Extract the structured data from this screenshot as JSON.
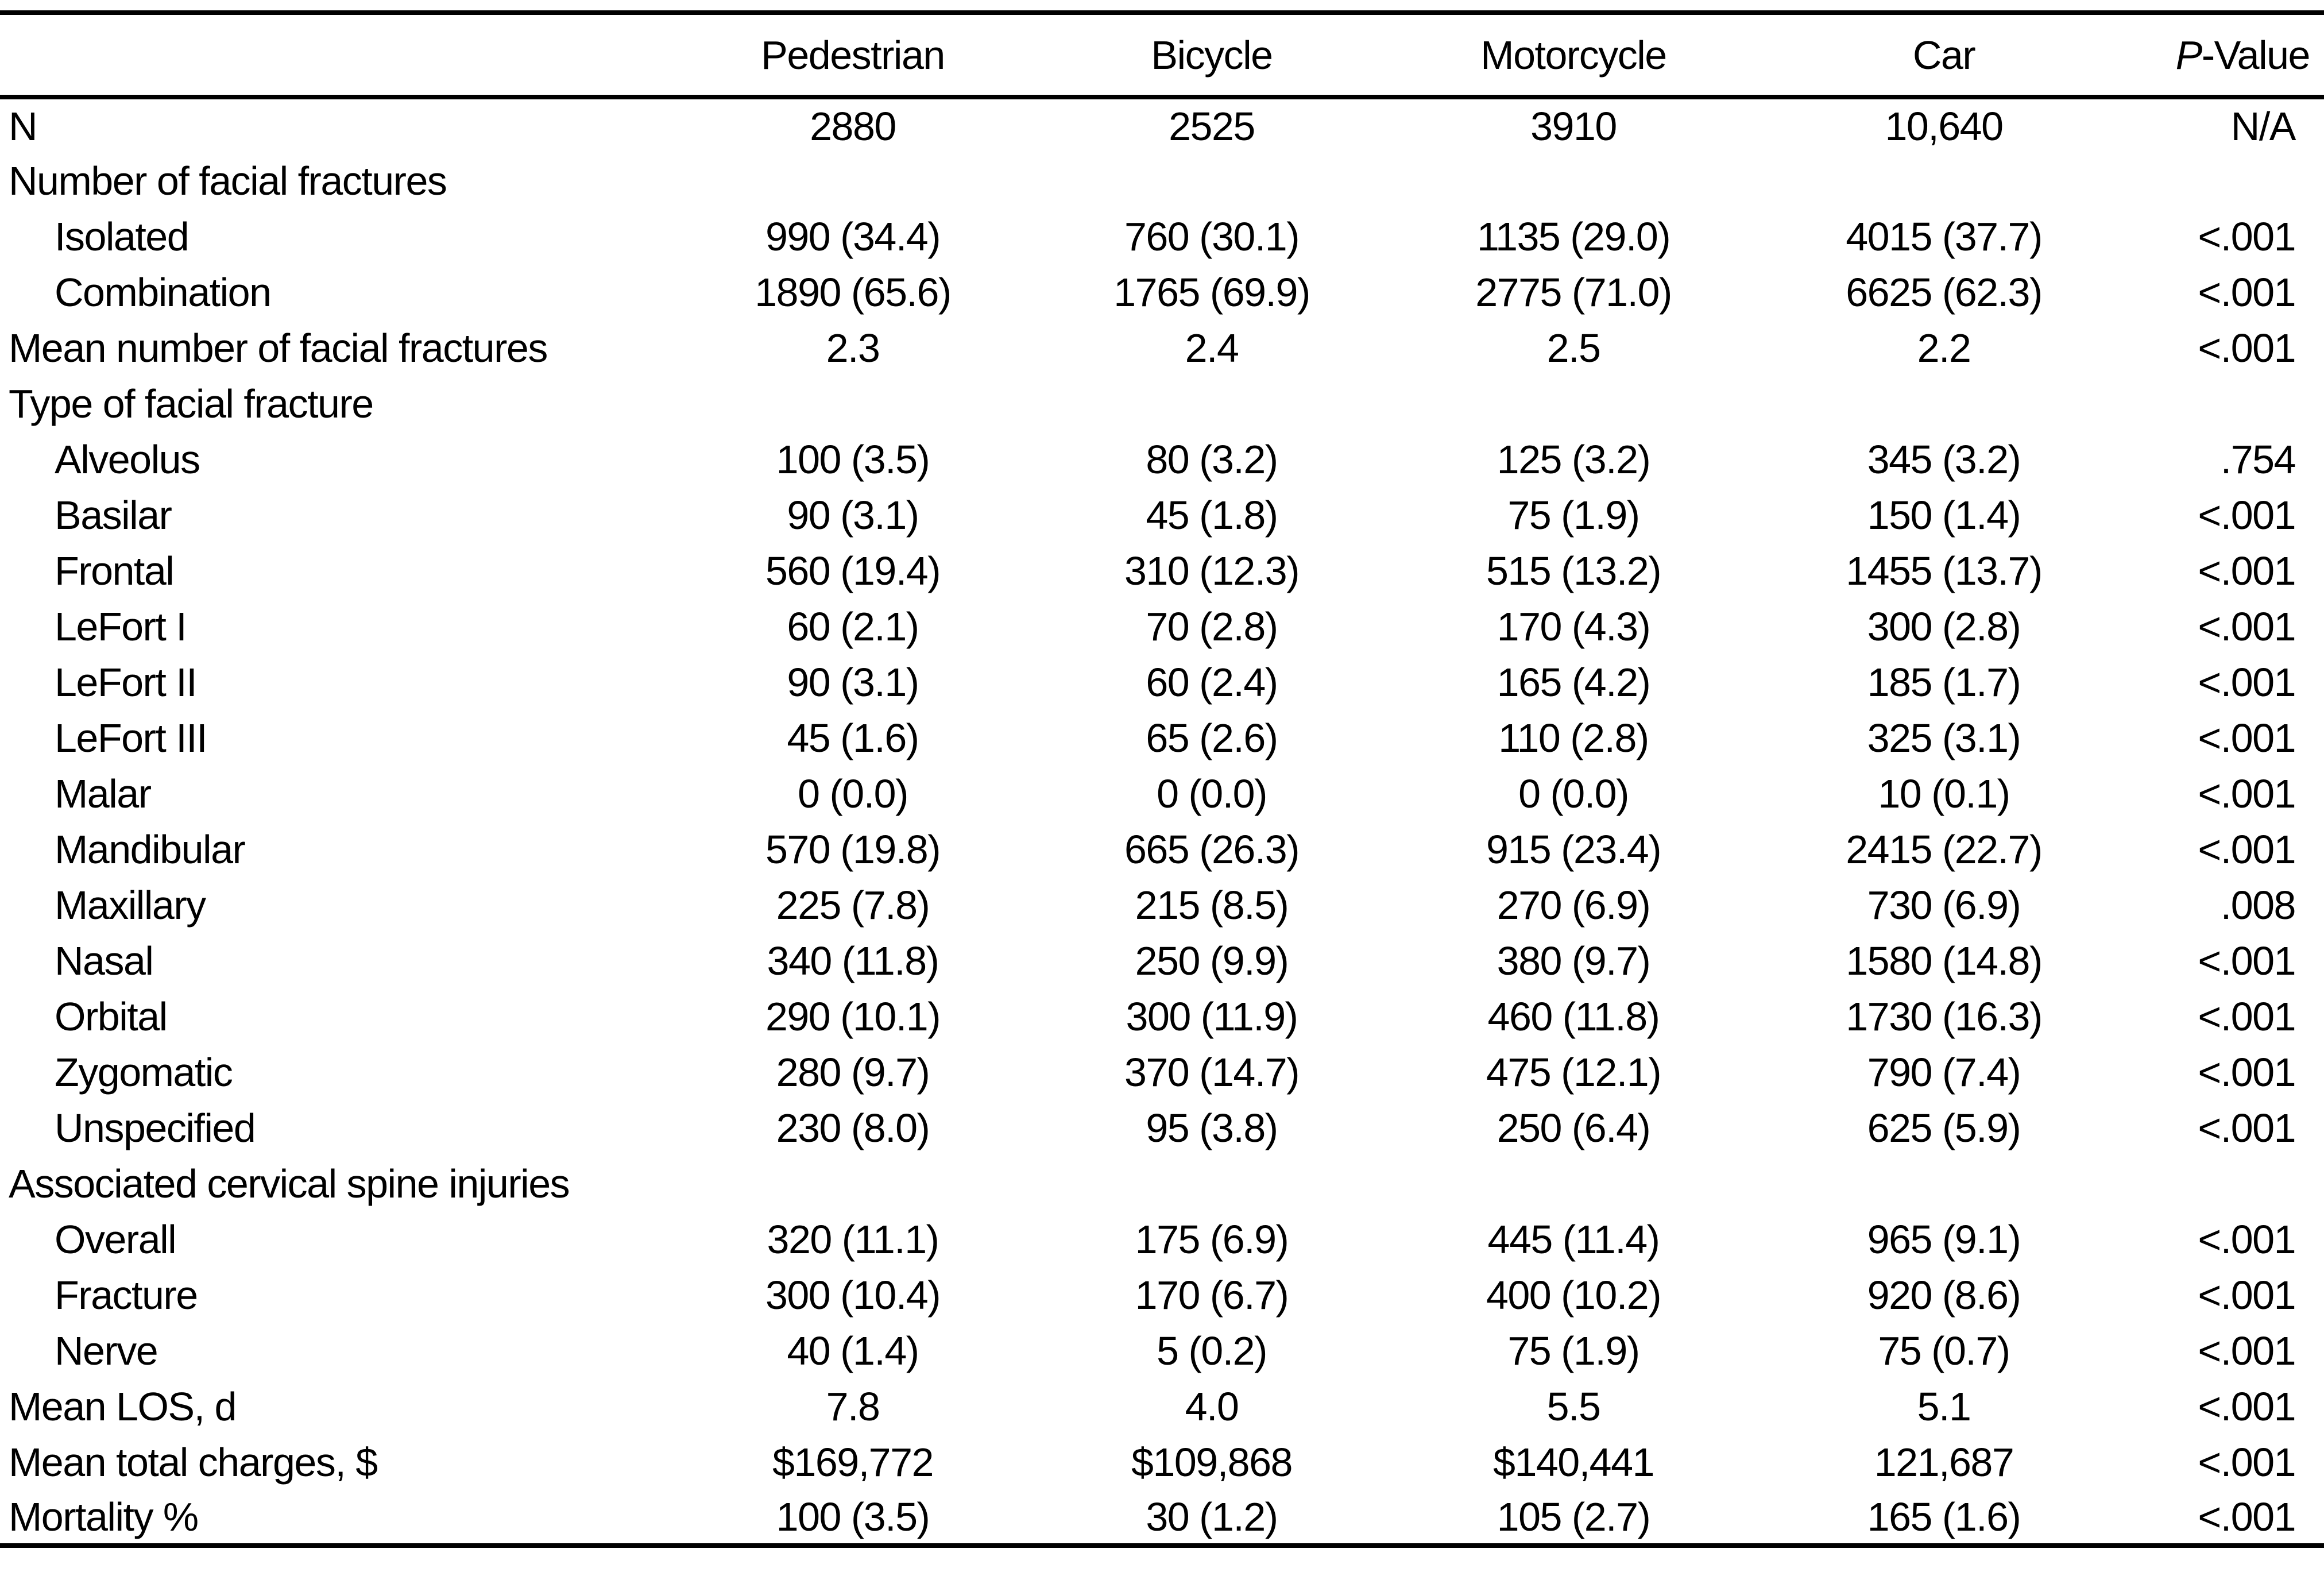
{
  "header": {
    "col_pedestrian": "Pedestrian",
    "col_bicycle": "Bicycle",
    "col_motorcycle": "Motorcycle",
    "col_car": "Car",
    "p_italic": "P",
    "p_rest": "-Value"
  },
  "table": {
    "rows": [
      {
        "label": "N",
        "indent": false,
        "section": false,
        "cells": [
          "2880",
          "2525",
          "3910",
          "10,640",
          "N/A"
        ]
      },
      {
        "label": "Number of facial fractures",
        "indent": false,
        "section": true,
        "cells": [
          "",
          "",
          "",
          "",
          ""
        ]
      },
      {
        "label": "Isolated",
        "indent": true,
        "section": false,
        "cells": [
          "990 (34.4)",
          "760 (30.1)",
          "1135 (29.0)",
          "4015 (37.7)",
          "<.001"
        ]
      },
      {
        "label": "Combination",
        "indent": true,
        "section": false,
        "cells": [
          "1890 (65.6)",
          "1765 (69.9)",
          "2775 (71.0)",
          "6625 (62.3)",
          "<.001"
        ]
      },
      {
        "label": "Mean number of facial fractures",
        "indent": false,
        "section": false,
        "cells": [
          "2.3",
          "2.4",
          "2.5",
          "2.2",
          "<.001"
        ]
      },
      {
        "label": "Type of facial fracture",
        "indent": false,
        "section": true,
        "cells": [
          "",
          "",
          "",
          "",
          ""
        ]
      },
      {
        "label": "Alveolus",
        "indent": true,
        "section": false,
        "cells": [
          "100 (3.5)",
          "80 (3.2)",
          "125 (3.2)",
          "345 (3.2)",
          ".754"
        ]
      },
      {
        "label": "Basilar",
        "indent": true,
        "section": false,
        "cells": [
          "90 (3.1)",
          "45 (1.8)",
          "75 (1.9)",
          "150 (1.4)",
          "<.001"
        ]
      },
      {
        "label": "Frontal",
        "indent": true,
        "section": false,
        "cells": [
          "560 (19.4)",
          "310 (12.3)",
          "515 (13.2)",
          "1455 (13.7)",
          "<.001"
        ]
      },
      {
        "label": "LeFort I",
        "indent": true,
        "section": false,
        "cells": [
          "60 (2.1)",
          "70 (2.8)",
          "170 (4.3)",
          "300 (2.8)",
          "<.001"
        ]
      },
      {
        "label": "LeFort II",
        "indent": true,
        "section": false,
        "cells": [
          "90 (3.1)",
          "60 (2.4)",
          "165 (4.2)",
          "185 (1.7)",
          "<.001"
        ]
      },
      {
        "label": "LeFort III",
        "indent": true,
        "section": false,
        "cells": [
          "45 (1.6)",
          "65 (2.6)",
          "110 (2.8)",
          "325 (3.1)",
          "<.001"
        ]
      },
      {
        "label": "Malar",
        "indent": true,
        "section": false,
        "cells": [
          "0 (0.0)",
          "0 (0.0)",
          "0 (0.0)",
          "10 (0.1)",
          "<.001"
        ]
      },
      {
        "label": "Mandibular",
        "indent": true,
        "section": false,
        "cells": [
          "570 (19.8)",
          "665 (26.3)",
          "915 (23.4)",
          "2415 (22.7)",
          "<.001"
        ]
      },
      {
        "label": "Maxillary",
        "indent": true,
        "section": false,
        "cells": [
          "225 (7.8)",
          "215 (8.5)",
          "270 (6.9)",
          "730 (6.9)",
          ".008"
        ]
      },
      {
        "label": "Nasal",
        "indent": true,
        "section": false,
        "cells": [
          "340 (11.8)",
          "250 (9.9)",
          "380 (9.7)",
          "1580 (14.8)",
          "<.001"
        ]
      },
      {
        "label": "Orbital",
        "indent": true,
        "section": false,
        "cells": [
          "290 (10.1)",
          "300 (11.9)",
          "460 (11.8)",
          "1730 (16.3)",
          "<.001"
        ]
      },
      {
        "label": "Zygomatic",
        "indent": true,
        "section": false,
        "cells": [
          "280 (9.7)",
          "370 (14.7)",
          "475 (12.1)",
          "790 (7.4)",
          "<.001"
        ]
      },
      {
        "label": "Unspecified",
        "indent": true,
        "section": false,
        "cells": [
          "230 (8.0)",
          "95 (3.8)",
          "250 (6.4)",
          "625 (5.9)",
          "<.001"
        ]
      },
      {
        "label": "Associated cervical spine injuries",
        "indent": false,
        "section": true,
        "cells": [
          "",
          "",
          "",
          "",
          ""
        ]
      },
      {
        "label": "Overall",
        "indent": true,
        "section": false,
        "cells": [
          "320 (11.1)",
          "175 (6.9)",
          "445 (11.4)",
          "965 (9.1)",
          "<.001"
        ]
      },
      {
        "label": "Fracture",
        "indent": true,
        "section": false,
        "cells": [
          "300 (10.4)",
          "170 (6.7)",
          "400 (10.2)",
          "920 (8.6)",
          "<.001"
        ]
      },
      {
        "label": "Nerve",
        "indent": true,
        "section": false,
        "cells": [
          "40 (1.4)",
          "5 (0.2)",
          "75 (1.9)",
          "75 (0.7)",
          "<.001"
        ]
      },
      {
        "label": "Mean LOS, d",
        "indent": false,
        "section": false,
        "cells": [
          "7.8",
          "4.0",
          "5.5",
          "5.1",
          "<.001"
        ]
      },
      {
        "label": "Mean total charges, $",
        "indent": false,
        "section": false,
        "cells": [
          "$169,772",
          "$109,868",
          "$140,441",
          "121,687",
          "<.001"
        ]
      },
      {
        "label": "Mortality %",
        "indent": false,
        "section": false,
        "cells": [
          "100 (3.5)",
          "30 (1.2)",
          "105 (2.7)",
          "165 (1.6)",
          "<.001"
        ]
      }
    ]
  }
}
